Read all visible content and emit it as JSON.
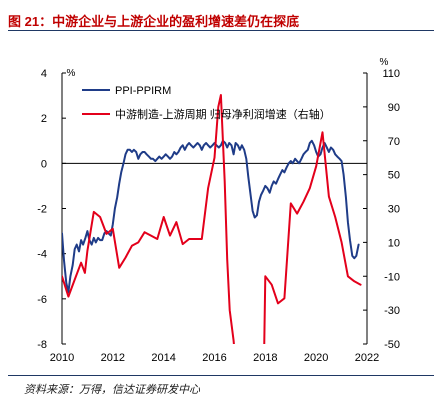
{
  "title": "图 21：中游企业与上游企业的盈利增速差仍在探底",
  "source": "资料来源：万得，信达证券研发中心",
  "colors": {
    "ppi_ppirm": "#1f3c88",
    "profit_diff": "#e3001b",
    "title": "#c00000"
  },
  "chart_data": {
    "type": "line",
    "y_left": {
      "unit": "%",
      "ylim": [
        -8,
        4
      ],
      "ticks": [
        4,
        2,
        0,
        -2,
        -4,
        -6,
        -8
      ]
    },
    "y_right": {
      "unit": "%",
      "ylim": [
        -50,
        110
      ],
      "ticks": [
        110,
        90,
        70,
        50,
        30,
        10,
        -10,
        -30,
        -50
      ]
    },
    "x": {
      "xlim": [
        2010,
        2022
      ],
      "ticks": [
        2010,
        2012,
        2014,
        2016,
        2018,
        2020,
        2022
      ]
    },
    "grid": false,
    "legend_position": "top-left",
    "series": [
      {
        "name": "PPI-PPIRM",
        "axis": "left",
        "points": [
          [
            2010.0,
            -3.1
          ],
          [
            2010.08,
            -4.3
          ],
          [
            2010.17,
            -5.3
          ],
          [
            2010.25,
            -5.7
          ],
          [
            2010.33,
            -5.0
          ],
          [
            2010.42,
            -4.5
          ],
          [
            2010.5,
            -3.8
          ],
          [
            2010.58,
            -3.6
          ],
          [
            2010.67,
            -3.9
          ],
          [
            2010.75,
            -3.4
          ],
          [
            2010.83,
            -3.6
          ],
          [
            2010.92,
            -3.3
          ],
          [
            2011.0,
            -3.0
          ],
          [
            2011.08,
            -3.4
          ],
          [
            2011.17,
            -3.6
          ],
          [
            2011.25,
            -3.3
          ],
          [
            2011.33,
            -3.5
          ],
          [
            2011.42,
            -3.3
          ],
          [
            2011.5,
            -3.4
          ],
          [
            2011.58,
            -3.4
          ],
          [
            2011.67,
            -3.1
          ],
          [
            2011.75,
            -3.0
          ],
          [
            2011.83,
            -3.1
          ],
          [
            2011.92,
            -3.2
          ],
          [
            2012.0,
            -2.7
          ],
          [
            2012.08,
            -2.0
          ],
          [
            2012.17,
            -1.5
          ],
          [
            2012.25,
            -0.9
          ],
          [
            2012.33,
            -0.4
          ],
          [
            2012.42,
            0.0
          ],
          [
            2012.5,
            0.4
          ],
          [
            2012.58,
            0.6
          ],
          [
            2012.67,
            0.6
          ],
          [
            2012.75,
            0.5
          ],
          [
            2012.83,
            0.6
          ],
          [
            2012.92,
            0.5
          ],
          [
            2013.0,
            0.2
          ],
          [
            2013.08,
            0.4
          ],
          [
            2013.17,
            0.5
          ],
          [
            2013.25,
            0.5
          ],
          [
            2013.33,
            0.4
          ],
          [
            2013.42,
            0.3
          ],
          [
            2013.5,
            0.2
          ],
          [
            2013.58,
            0.2
          ],
          [
            2013.67,
            0.1
          ],
          [
            2013.75,
            0.2
          ],
          [
            2013.83,
            0.3
          ],
          [
            2013.92,
            0.2
          ],
          [
            2014.0,
            0.3
          ],
          [
            2014.08,
            0.4
          ],
          [
            2014.17,
            0.3
          ],
          [
            2014.25,
            0.2
          ],
          [
            2014.33,
            0.3
          ],
          [
            2014.42,
            0.5
          ],
          [
            2014.5,
            0.4
          ],
          [
            2014.58,
            0.5
          ],
          [
            2014.67,
            0.7
          ],
          [
            2014.75,
            0.8
          ],
          [
            2014.83,
            0.6
          ],
          [
            2014.92,
            0.8
          ],
          [
            2015.0,
            0.9
          ],
          [
            2015.08,
            0.8
          ],
          [
            2015.17,
            0.7
          ],
          [
            2015.25,
            0.8
          ],
          [
            2015.33,
            0.9
          ],
          [
            2015.42,
            0.8
          ],
          [
            2015.5,
            0.6
          ],
          [
            2015.58,
            0.8
          ],
          [
            2015.67,
            0.9
          ],
          [
            2015.75,
            0.8
          ],
          [
            2015.83,
            0.7
          ],
          [
            2015.92,
            0.8
          ],
          [
            2016.0,
            0.9
          ],
          [
            2016.08,
            0.8
          ],
          [
            2016.17,
            0.7
          ],
          [
            2016.25,
            0.8
          ],
          [
            2016.33,
            1.0
          ],
          [
            2016.42,
            0.9
          ],
          [
            2016.5,
            0.7
          ],
          [
            2016.58,
            0.9
          ],
          [
            2016.67,
            0.8
          ],
          [
            2016.75,
            0.4
          ],
          [
            2016.83,
            0.9
          ],
          [
            2016.92,
            0.8
          ],
          [
            2017.0,
            0.6
          ],
          [
            2017.08,
            0.8
          ],
          [
            2017.17,
            0.6
          ],
          [
            2017.25,
            0.2
          ],
          [
            2017.33,
            -0.6
          ],
          [
            2017.42,
            -1.4
          ],
          [
            2017.5,
            -2.1
          ],
          [
            2017.58,
            -2.4
          ],
          [
            2017.67,
            -2.3
          ],
          [
            2017.75,
            -1.7
          ],
          [
            2017.83,
            -1.4
          ],
          [
            2017.92,
            -1.2
          ],
          [
            2018.0,
            -1.0
          ],
          [
            2018.08,
            -1.1
          ],
          [
            2018.17,
            -1.3
          ],
          [
            2018.25,
            -1.0
          ],
          [
            2018.33,
            -0.8
          ],
          [
            2018.42,
            -0.9
          ],
          [
            2018.5,
            -0.7
          ],
          [
            2018.58,
            -0.5
          ],
          [
            2018.67,
            -0.3
          ],
          [
            2018.75,
            -0.4
          ],
          [
            2018.83,
            -0.2
          ],
          [
            2018.92,
            0.0
          ],
          [
            2019.0,
            0.1
          ],
          [
            2019.08,
            0.0
          ],
          [
            2019.17,
            0.2
          ],
          [
            2019.25,
            0.1
          ],
          [
            2019.33,
            0.0
          ],
          [
            2019.42,
            0.2
          ],
          [
            2019.5,
            0.4
          ],
          [
            2019.58,
            0.5
          ],
          [
            2019.67,
            0.6
          ],
          [
            2019.75,
            0.9
          ],
          [
            2019.83,
            1.0
          ],
          [
            2019.92,
            0.8
          ],
          [
            2020.0,
            0.5
          ],
          [
            2020.08,
            0.3
          ],
          [
            2020.17,
            0.4
          ],
          [
            2020.25,
            0.7
          ],
          [
            2020.33,
            0.9
          ],
          [
            2020.42,
            0.7
          ],
          [
            2020.5,
            0.5
          ],
          [
            2020.58,
            0.7
          ],
          [
            2020.67,
            0.6
          ],
          [
            2020.75,
            0.4
          ],
          [
            2020.83,
            0.3
          ],
          [
            2020.92,
            0.2
          ],
          [
            2021.0,
            0.1
          ],
          [
            2021.08,
            -0.5
          ],
          [
            2021.17,
            -1.5
          ],
          [
            2021.25,
            -2.6
          ],
          [
            2021.33,
            -3.4
          ],
          [
            2021.42,
            -4.1
          ],
          [
            2021.5,
            -4.2
          ],
          [
            2021.58,
            -4.1
          ],
          [
            2021.67,
            -3.6
          ]
        ]
      },
      {
        "name": "中游制造-上游周期 归母净利润增速（右轴）",
        "axis": "right",
        "points": [
          [
            2010.0,
            -10
          ],
          [
            2010.25,
            -22
          ],
          [
            2010.5,
            -12
          ],
          [
            2010.75,
            -2
          ],
          [
            2010.9,
            -8
          ],
          [
            2011.0,
            5
          ],
          [
            2011.25,
            28
          ],
          [
            2011.5,
            25
          ],
          [
            2011.75,
            15
          ],
          [
            2012.0,
            18
          ],
          [
            2012.25,
            -5
          ],
          [
            2012.5,
            1
          ],
          [
            2012.75,
            8
          ],
          [
            2013.0,
            10
          ],
          [
            2013.25,
            16
          ],
          [
            2013.5,
            14
          ],
          [
            2013.75,
            12
          ],
          [
            2014.0,
            25
          ],
          [
            2014.25,
            14
          ],
          [
            2014.5,
            22
          ],
          [
            2014.75,
            9
          ],
          [
            2015.0,
            12
          ],
          [
            2015.25,
            12
          ],
          [
            2015.5,
            12
          ],
          [
            2015.75,
            42
          ],
          [
            2016.0,
            60
          ],
          [
            2016.15,
            90
          ],
          [
            2016.25,
            97
          ],
          [
            2016.4,
            46
          ],
          [
            2016.5,
            0
          ],
          [
            2016.6,
            -30
          ],
          [
            2016.75,
            -48
          ],
          [
            2016.8,
            -56
          ]
        ]
      },
      {
        "name": "中游制造-上游周期 归母净利润增速（右轴）",
        "axis": "right",
        "points": [
          [
            2017.95,
            -56
          ],
          [
            2018.0,
            -10
          ],
          [
            2018.25,
            -15
          ],
          [
            2018.5,
            -26
          ],
          [
            2018.75,
            -23
          ],
          [
            2019.0,
            33
          ],
          [
            2019.25,
            27
          ],
          [
            2019.5,
            34
          ],
          [
            2019.75,
            42
          ],
          [
            2020.0,
            55
          ],
          [
            2020.25,
            75
          ],
          [
            2020.5,
            37
          ],
          [
            2020.75,
            25
          ],
          [
            2021.0,
            10
          ],
          [
            2021.25,
            -10
          ],
          [
            2021.5,
            -13
          ],
          [
            2021.75,
            -15
          ]
        ]
      }
    ]
  }
}
